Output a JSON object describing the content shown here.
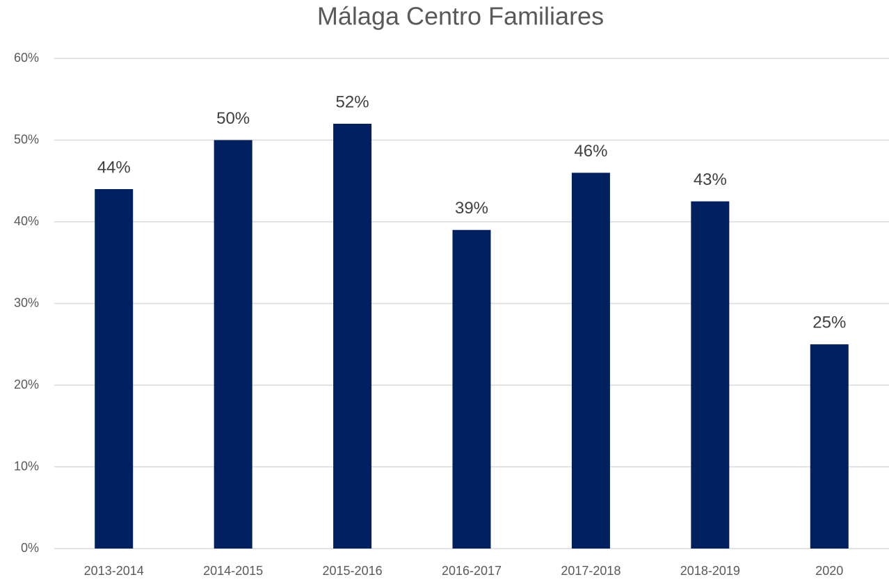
{
  "chart_data": {
    "type": "bar",
    "title": "Málaga Centro Familiares",
    "categories": [
      "2013-2014",
      "2014-2015",
      "2015-2016",
      "2016-2017",
      "2017-2018",
      "2018-2019",
      "2020"
    ],
    "values": [
      44,
      50,
      52,
      39,
      46,
      42.5,
      25
    ],
    "value_labels": [
      "44%",
      "50%",
      "52%",
      "39%",
      "46%",
      "43%",
      "25%"
    ],
    "color": "#002060",
    "ylim": [
      0,
      60
    ],
    "yticks": [
      {
        "value": 0,
        "label": "0%"
      },
      {
        "value": 10,
        "label": "10%"
      },
      {
        "value": 20,
        "label": "20%"
      },
      {
        "value": 30,
        "label": "30%"
      },
      {
        "value": 40,
        "label": "40%"
      },
      {
        "value": 50,
        "label": "50%"
      },
      {
        "value": 60,
        "label": "60%"
      }
    ],
    "grid": true
  }
}
